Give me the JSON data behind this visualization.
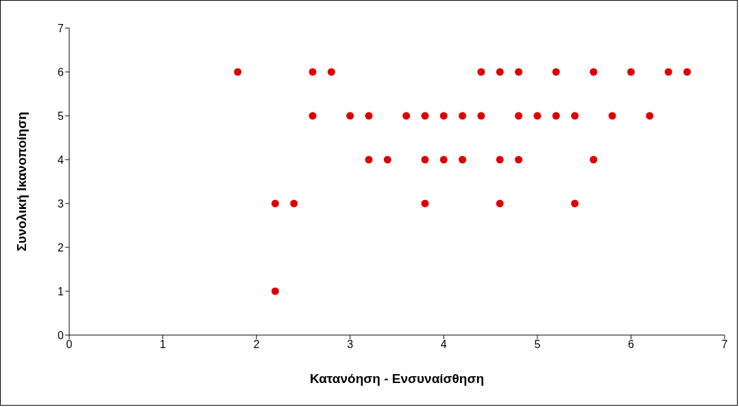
{
  "chart_data": {
    "type": "scatter",
    "xlabel": "Κατανόηση - Ενσυναίσθηση",
    "ylabel": "Συνολική Ικανοποίηση",
    "x": [
      1.8,
      2.6,
      2.8,
      4.4,
      4.6,
      4.8,
      5.2,
      5.6,
      6.0,
      6.4,
      6.6,
      2.6,
      3.0,
      3.2,
      3.6,
      3.8,
      4.0,
      4.2,
      4.4,
      4.8,
      5.0,
      5.2,
      5.4,
      5.8,
      6.2,
      3.2,
      3.4,
      3.8,
      4.0,
      4.2,
      4.6,
      4.8,
      5.6,
      2.2,
      2.4,
      3.8,
      4.6,
      5.4,
      2.2
    ],
    "series": [
      {
        "color": "#dd0000",
        "values": [
          6,
          6,
          6,
          6,
          6,
          6,
          6,
          6,
          6,
          6,
          6,
          5,
          5,
          5,
          5,
          5,
          5,
          5,
          5,
          5,
          5,
          5,
          5,
          5,
          5,
          4,
          4,
          4,
          4,
          4,
          4,
          4,
          4,
          3,
          3,
          3,
          3,
          3,
          1
        ]
      }
    ],
    "xlim": [
      0,
      7
    ],
    "xticks": [
      0,
      1,
      2,
      3,
      4,
      5,
      6,
      7
    ],
    "ylim": [
      0,
      7
    ],
    "yticks": [
      0,
      1,
      2,
      3,
      4,
      5,
      6,
      7
    ],
    "grid": false,
    "legend": false,
    "marker": "circle"
  }
}
